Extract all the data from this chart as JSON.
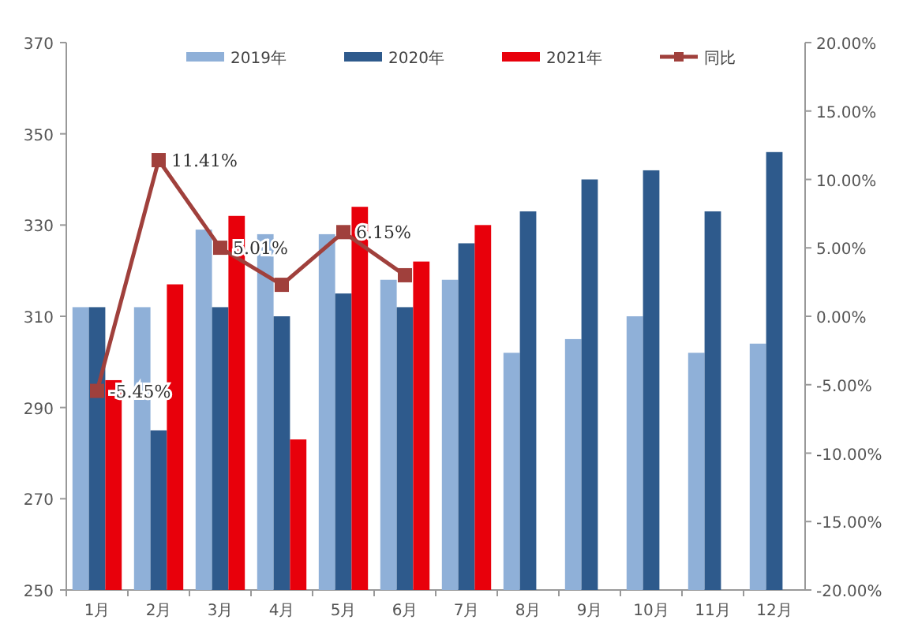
{
  "chart_data": {
    "type": "bar",
    "categories": [
      "1月",
      "2月",
      "3月",
      "4月",
      "5月",
      "6月",
      "7月",
      "8月",
      "9月",
      "10月",
      "11月",
      "12月"
    ],
    "series": [
      {
        "name": "2019年",
        "color": "#8fb0d8",
        "values": [
          312,
          312,
          329,
          328,
          328,
          318,
          318,
          302,
          305,
          310,
          302,
          304
        ]
      },
      {
        "name": "2020年",
        "color": "#2e5a8c",
        "values": [
          312,
          285,
          312,
          310,
          315,
          312,
          326,
          333,
          340,
          342,
          333,
          346
        ]
      },
      {
        "name": "2021年",
        "color": "#e8000b",
        "values": [
          296,
          317,
          332,
          283,
          334,
          322,
          330,
          null,
          null,
          null,
          null,
          null
        ]
      },
      {
        "name": "同比",
        "type": "line",
        "axis": "y2",
        "color": "#a0403c",
        "marker": "square",
        "values": [
          -5.45,
          11.41,
          5.01,
          2.3,
          6.15,
          3.0,
          null,
          null,
          null,
          null,
          null,
          null
        ],
        "value_labels": [
          "-5.45%",
          "11.41%",
          "5.01%",
          null,
          "6.15%",
          null,
          null,
          null,
          null,
          null,
          null,
          null
        ]
      }
    ],
    "ylim": [
      250,
      370
    ],
    "yticks": [
      250,
      270,
      290,
      310,
      330,
      350,
      370
    ],
    "y2lim": [
      -20,
      20
    ],
    "y2ticks": [
      {
        "value": -20,
        "label": "-20.00%"
      },
      {
        "value": -15,
        "label": "-15.00%"
      },
      {
        "value": -10,
        "label": "-10.00%"
      },
      {
        "value": -5,
        "label": "-5.00%"
      },
      {
        "value": 0,
        "label": "0.00%"
      },
      {
        "value": 5,
        "label": "5.00%"
      },
      {
        "value": 10,
        "label": "10.00%"
      },
      {
        "value": 15,
        "label": "15.00%"
      },
      {
        "value": 20,
        "label": "20.00%"
      }
    ],
    "legend": "top",
    "grid": false
  }
}
